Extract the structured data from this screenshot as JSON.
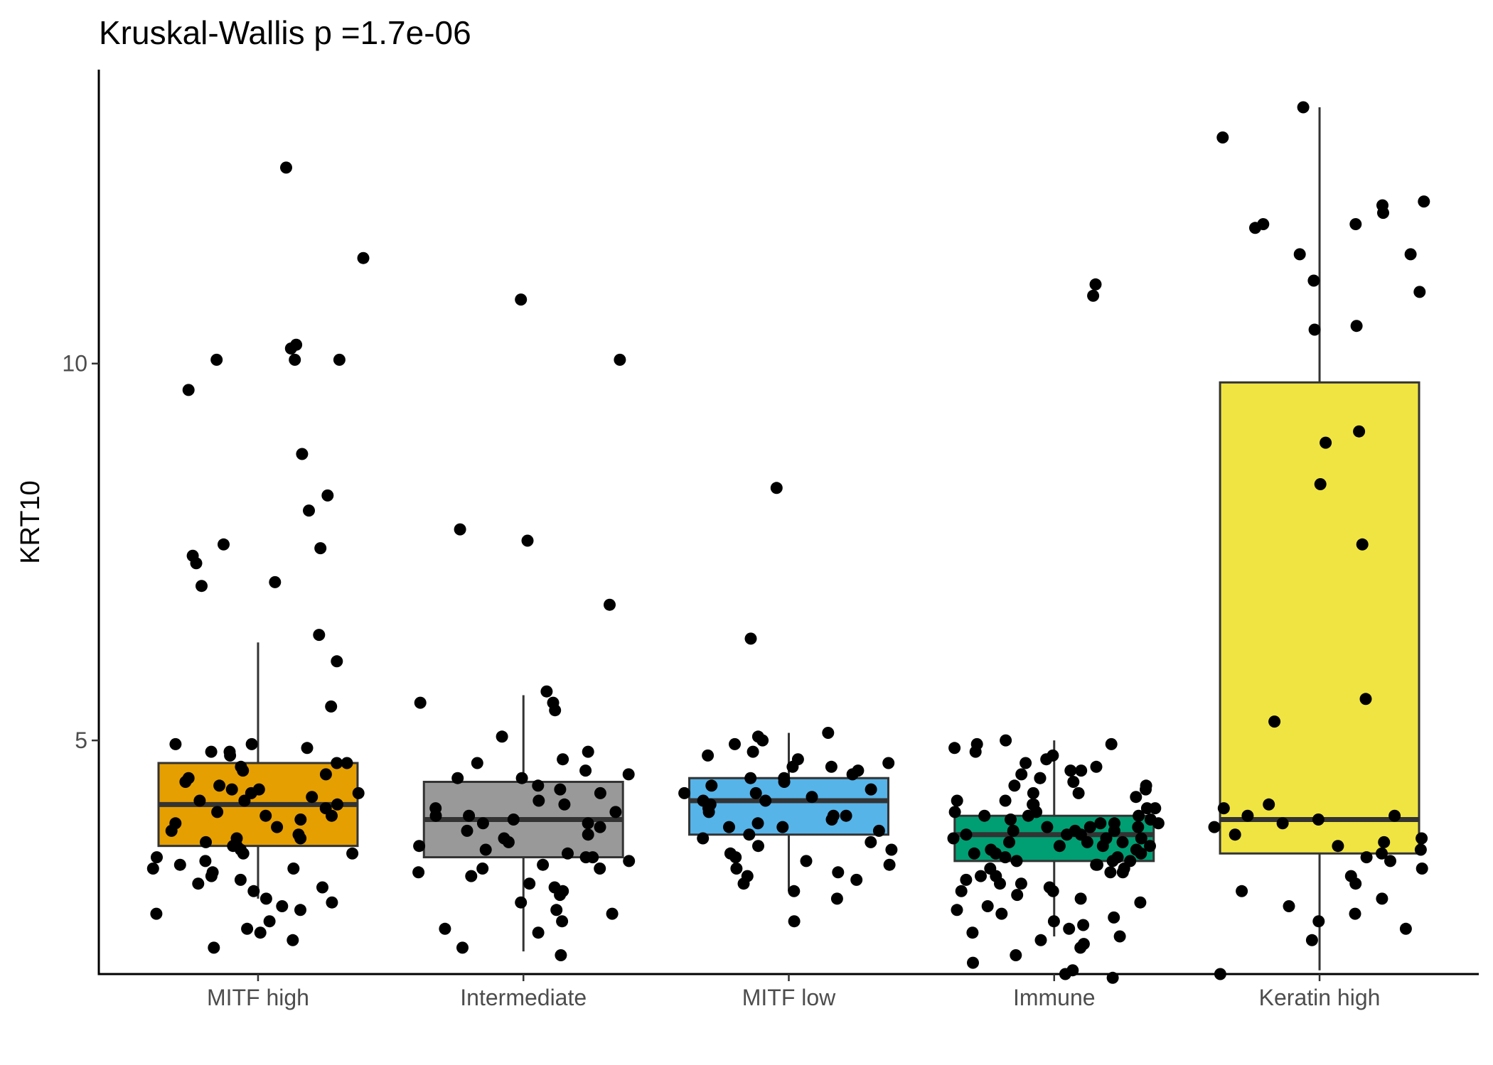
{
  "chart_data": {
    "type": "boxplot",
    "title": "Kruskal-Wallis p =1.7e-06",
    "xlabel": "",
    "ylabel": "KRT10",
    "ylim": [
      1.9,
      13.9
    ],
    "y_ticks": [
      5,
      10
    ],
    "grid": false,
    "legend": "none",
    "categories": [
      "MITF high",
      "Intermediate",
      "MITF low",
      "Immune",
      "Keratin high"
    ],
    "series": [
      {
        "category": "MITF high",
        "color": "#E69F00",
        "whisker_low": 2.9,
        "q1": 3.6,
        "median": 4.15,
        "q3": 4.7,
        "whisker_high": 6.3,
        "points": [
          10.2,
          10.05,
          12.6,
          11.4,
          10.25,
          10.05,
          9.65,
          10.05,
          8.8,
          8.25,
          8.05,
          7.6,
          7.55,
          7.45,
          7.1,
          7.05,
          7.35,
          6.4,
          6.05,
          5.45,
          4.95,
          4.95,
          4.9,
          4.85,
          4.85,
          4.8,
          4.7,
          4.7,
          4.65,
          4.6,
          4.55,
          4.5,
          4.45,
          4.4,
          4.35,
          4.35,
          4.3,
          4.3,
          4.25,
          4.2,
          4.2,
          4.15,
          4.1,
          4.05,
          4.0,
          4.0,
          3.95,
          3.9,
          3.85,
          3.8,
          3.75,
          3.7,
          3.7,
          3.65,
          3.6,
          3.6,
          3.55,
          3.5,
          3.5,
          3.45,
          3.4,
          3.35,
          3.3,
          3.3,
          3.25,
          3.2,
          3.15,
          3.1,
          3.05,
          3.0,
          2.9,
          2.85,
          2.8,
          2.75,
          2.7,
          2.6,
          2.5,
          2.45,
          2.35,
          2.25
        ]
      },
      {
        "category": "Intermediate",
        "color": "#999999",
        "whisker_low": 2.2,
        "q1": 3.45,
        "median": 3.95,
        "q3": 4.45,
        "whisker_high": 5.6,
        "points": [
          10.85,
          10.05,
          7.8,
          7.65,
          6.8,
          5.65,
          5.5,
          5.5,
          5.4,
          5.05,
          4.85,
          4.75,
          4.7,
          4.6,
          4.55,
          4.5,
          4.5,
          4.4,
          4.35,
          4.3,
          4.2,
          4.15,
          4.1,
          4.05,
          4.0,
          4.0,
          3.95,
          3.9,
          3.9,
          3.85,
          3.8,
          3.75,
          3.7,
          3.65,
          3.6,
          3.55,
          3.5,
          3.45,
          3.45,
          3.4,
          3.35,
          3.3,
          3.3,
          3.25,
          3.2,
          3.1,
          3.05,
          3.0,
          2.95,
          2.85,
          2.75,
          2.7,
          2.6,
          2.5,
          2.45,
          2.25,
          2.15
        ]
      },
      {
        "category": "MITF low",
        "color": "#56B4E9",
        "whisker_low": 3.0,
        "q1": 3.75,
        "median": 4.2,
        "q3": 4.5,
        "whisker_high": 5.1,
        "points": [
          8.35,
          6.35,
          5.1,
          5.05,
          5.0,
          4.95,
          4.85,
          4.8,
          4.75,
          4.7,
          4.65,
          4.65,
          4.6,
          4.55,
          4.5,
          4.5,
          4.45,
          4.4,
          4.35,
          4.3,
          4.3,
          4.25,
          4.2,
          4.2,
          4.15,
          4.1,
          4.05,
          4.0,
          4.0,
          3.95,
          3.9,
          3.85,
          3.85,
          3.8,
          3.75,
          3.7,
          3.65,
          3.6,
          3.55,
          3.5,
          3.45,
          3.4,
          3.35,
          3.3,
          3.25,
          3.2,
          3.15,
          3.1,
          3.0,
          2.9,
          2.6
        ]
      },
      {
        "category": "Immune",
        "color": "#009E73",
        "whisker_low": 2.4,
        "q1": 3.4,
        "median": 3.75,
        "q3": 4.0,
        "whisker_high": 5.0,
        "points": [
          11.05,
          10.9,
          5.0,
          4.95,
          4.95,
          4.9,
          4.85,
          4.8,
          4.75,
          4.7,
          4.65,
          4.6,
          4.6,
          4.55,
          4.5,
          4.5,
          4.45,
          4.4,
          4.4,
          4.35,
          4.3,
          4.3,
          4.25,
          4.2,
          4.2,
          4.15,
          4.15,
          4.1,
          4.1,
          4.05,
          4.05,
          4.0,
          4.0,
          4.0,
          3.95,
          3.95,
          3.9,
          3.9,
          3.9,
          3.85,
          3.85,
          3.85,
          3.8,
          3.8,
          3.8,
          3.75,
          3.75,
          3.75,
          3.7,
          3.7,
          3.7,
          3.65,
          3.65,
          3.65,
          3.6,
          3.6,
          3.6,
          3.55,
          3.55,
          3.5,
          3.5,
          3.5,
          3.45,
          3.45,
          3.4,
          3.4,
          3.4,
          3.35,
          3.35,
          3.3,
          3.3,
          3.25,
          3.25,
          3.2,
          3.2,
          3.15,
          3.1,
          3.1,
          3.05,
          3.0,
          3.0,
          2.95,
          2.9,
          2.85,
          2.8,
          2.75,
          2.7,
          2.65,
          2.6,
          2.55,
          2.5,
          2.45,
          2.4,
          2.35,
          2.3,
          2.25,
          2.15,
          2.05,
          1.95,
          1.9,
          1.85
        ]
      },
      {
        "category": "Keratin high",
        "color": "#F0E442",
        "whisker_low": 1.95,
        "q1": 3.5,
        "median": 3.95,
        "q3": 9.75,
        "whisker_high": 13.4,
        "points": [
          13.4,
          13.0,
          12.15,
          12.1,
          12.0,
          11.85,
          11.8,
          11.85,
          11.45,
          11.45,
          11.1,
          10.95,
          10.5,
          10.45,
          9.1,
          8.95,
          8.4,
          7.6,
          5.55,
          5.25,
          4.15,
          4.1,
          4.0,
          4.0,
          3.95,
          3.9,
          3.85,
          3.75,
          3.7,
          3.65,
          3.6,
          3.55,
          3.5,
          3.45,
          3.4,
          3.3,
          3.2,
          3.1,
          3.0,
          2.9,
          2.8,
          2.7,
          2.6,
          2.5,
          2.35,
          1.9
        ]
      }
    ]
  }
}
